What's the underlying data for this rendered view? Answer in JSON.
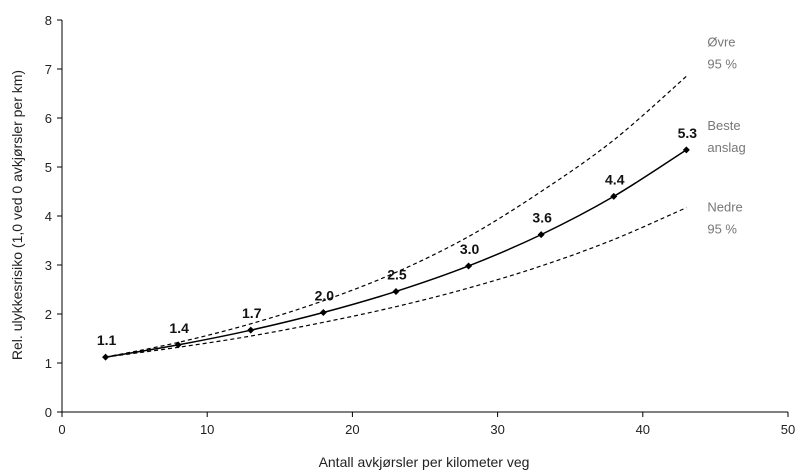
{
  "chart_data": {
    "type": "line",
    "title": "",
    "xlabel": "Antall avkjørsler per kilometer veg",
    "ylabel": "Rel. ulykkesrisiko (1,0 ved 0 avkjørsler per km)",
    "xlim": [
      0,
      50
    ],
    "ylim": [
      0,
      8
    ],
    "xticks": [
      "0",
      "10",
      "20",
      "30",
      "40",
      "50"
    ],
    "yticks": [
      "0",
      "1",
      "2",
      "3",
      "4",
      "5",
      "6",
      "7",
      "8"
    ],
    "grid": false,
    "series": [
      {
        "name": "Beste anslag",
        "style": "solid",
        "markers": true,
        "x": [
          3,
          8,
          13,
          18,
          23,
          28,
          33,
          38,
          43
        ],
        "y": [
          1.12,
          1.37,
          1.67,
          2.03,
          2.46,
          2.98,
          3.62,
          4.4,
          5.35
        ],
        "labels": [
          "1.1",
          "1.4",
          "1.7",
          "2.0",
          "2.5",
          "3.0",
          "3.6",
          "4.4",
          "5.3"
        ]
      },
      {
        "name": "Øvre 95 %",
        "style": "dashed",
        "markers": false,
        "x": [
          3,
          8,
          13,
          18,
          23,
          28,
          33,
          38,
          43
        ],
        "y": [
          1.12,
          1.42,
          1.8,
          2.27,
          2.85,
          3.58,
          4.5,
          5.55,
          6.85
        ]
      },
      {
        "name": "Nedre 95 %",
        "style": "dashed",
        "markers": false,
        "x": [
          3,
          8,
          13,
          18,
          23,
          28,
          33,
          38,
          43
        ],
        "y": [
          1.12,
          1.32,
          1.55,
          1.83,
          2.15,
          2.53,
          2.98,
          3.52,
          4.17
        ]
      }
    ],
    "series_labels": [
      {
        "lines": [
          "Øvre",
          "95 %"
        ]
      },
      {
        "lines": [
          "Beste",
          "anslag"
        ]
      },
      {
        "lines": [
          "Nedre",
          "95 %"
        ]
      }
    ],
    "colors": {
      "line": "#000000",
      "text": "#222222",
      "series_label": "#777777"
    }
  }
}
